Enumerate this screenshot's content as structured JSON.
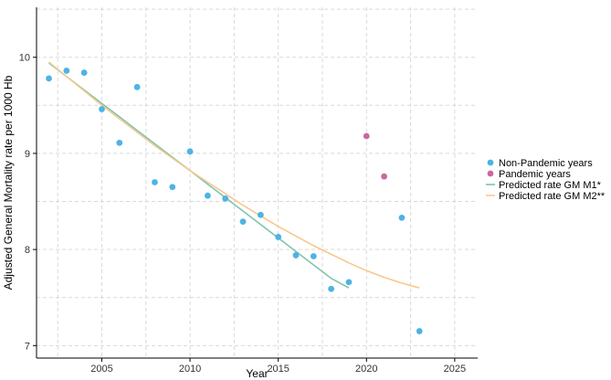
{
  "chart_data": {
    "type": "scatter",
    "title": "",
    "xlabel": "Year",
    "ylabel": "Adjusted General Mortality rate per 1000 Hb",
    "xlim": [
      2001.3,
      2026.3
    ],
    "ylim": [
      6.87,
      10.52
    ],
    "xticks": [
      2005,
      2010,
      2015,
      2020,
      2025
    ],
    "yticks": [
      7,
      8,
      9,
      10
    ],
    "grid": true,
    "legend_position": "right",
    "series": [
      {
        "name": "Non-Pandemic years",
        "kind": "points",
        "color": "#4db3e6",
        "x": [
          2002,
          2003,
          2004,
          2005,
          2006,
          2007,
          2008,
          2009,
          2010,
          2011,
          2012,
          2013,
          2014,
          2015,
          2016,
          2017,
          2018,
          2019,
          2022,
          2023
        ],
        "y": [
          9.78,
          9.86,
          9.84,
          9.46,
          9.11,
          9.69,
          8.7,
          8.65,
          9.02,
          8.56,
          8.53,
          8.29,
          8.36,
          8.13,
          7.94,
          7.93,
          7.59,
          7.66,
          8.33,
          7.15
        ]
      },
      {
        "name": "Pandemic years",
        "kind": "points",
        "color": "#cc66a3",
        "x": [
          2020,
          2021
        ],
        "y": [
          9.18,
          8.76
        ]
      },
      {
        "name": "Predicted rate GM M1*",
        "kind": "line",
        "color": "#7fc4ad",
        "x": [
          2002,
          2003,
          2004,
          2005,
          2006,
          2007,
          2008,
          2009,
          2010,
          2011,
          2012,
          2013,
          2014,
          2015,
          2016,
          2017,
          2018,
          2019
        ],
        "y": [
          9.94,
          9.8,
          9.66,
          9.52,
          9.38,
          9.24,
          9.1,
          8.96,
          8.82,
          8.68,
          8.54,
          8.4,
          8.26,
          8.12,
          7.98,
          7.84,
          7.7,
          7.6
        ]
      },
      {
        "name": "Predicted rate GM M2**",
        "kind": "line",
        "color": "#f7c88e",
        "x": [
          2002,
          2003,
          2004,
          2005,
          2006,
          2007,
          2008,
          2009,
          2010,
          2011,
          2012,
          2013,
          2014,
          2015,
          2016,
          2017,
          2018,
          2019,
          2020,
          2021,
          2022,
          2023
        ],
        "y": [
          9.95,
          9.8,
          9.65,
          9.5,
          9.36,
          9.22,
          9.08,
          8.95,
          8.82,
          8.7,
          8.58,
          8.46,
          8.35,
          8.24,
          8.14,
          8.04,
          7.95,
          7.86,
          7.78,
          7.71,
          7.65,
          7.6
        ]
      }
    ]
  }
}
